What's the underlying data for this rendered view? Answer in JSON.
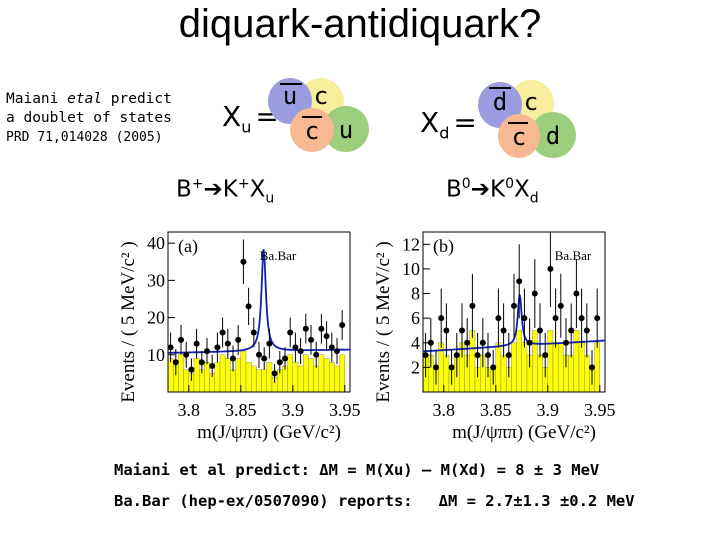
{
  "title": "diquark-antidiquark?",
  "note": {
    "line1_a": "Maiani ",
    "line1_b": "etal",
    "line1_c": " predict",
    "line2": "a doublet of states",
    "ref": "PRD 71,014028 (2005)"
  },
  "xu": {
    "label": "X",
    "sub": "u",
    "eq": "=",
    "q_anti_light": "u",
    "q_charm": "c",
    "q_anti_charm": "c",
    "q_light": "u"
  },
  "xd": {
    "label": "X",
    "sub": "d",
    "eq": "=",
    "q_anti_light": "d",
    "q_charm": "c",
    "q_anti_charm": "c",
    "q_light": "d"
  },
  "decays": {
    "left": {
      "b": "B",
      "b_sup": "+",
      "k": "K",
      "k_sup": "+",
      "x": "X",
      "x_sub": "u"
    },
    "right": {
      "b": "B",
      "b_sup": "0",
      "k": "K",
      "k_sup": "0",
      "x": "X",
      "x_sub": "d"
    }
  },
  "colors": {
    "quark_blue": "#9b9be0",
    "quark_orange": "#f7b893",
    "quark_yellow": "#f5ee9c",
    "quark_green": "#9ccf7d",
    "hist_fill": "#ffff00",
    "fit_line": "#1020b0"
  },
  "bottom": {
    "line1": "Maiani et al predict: ΔM = M(Xu) – M(Xd) = 8 ± 3 MeV",
    "line2_a": "Ba.Bar (hep-ex/0507090) reports:",
    "line2_b": "ΔM = 2.7±1.3 ±0.2 MeV"
  },
  "chart_data": [
    {
      "type": "scatter",
      "panel_label": "(a)",
      "watermark": "Ba.Bar",
      "title": "",
      "xlabel": "m(J/ψππ) (GeV/c²)",
      "ylabel": "Events / ( 5 MeV/c² )",
      "xlim": [
        3.78,
        3.955
      ],
      "ylim": [
        0,
        43
      ],
      "xticks": [
        "3.8",
        "3.85",
        "3.9",
        "3.95"
      ],
      "yticks": [
        "10",
        "20",
        "30",
        "40"
      ],
      "ytick_values": [
        10,
        20,
        30,
        40
      ],
      "xtick_values": [
        3.8,
        3.85,
        3.9,
        3.95
      ],
      "x": [
        3.7825,
        3.7875,
        3.7925,
        3.7975,
        3.8025,
        3.8075,
        3.8125,
        3.8175,
        3.8225,
        3.8275,
        3.8325,
        3.8375,
        3.8425,
        3.8475,
        3.8525,
        3.8575,
        3.8625,
        3.8675,
        3.8725,
        3.8775,
        3.8825,
        3.8875,
        3.8925,
        3.8975,
        3.9025,
        3.9075,
        3.9125,
        3.9175,
        3.9225,
        3.9275,
        3.9325,
        3.9375,
        3.9425,
        3.9475
      ],
      "y": [
        12,
        8,
        14,
        10,
        6,
        13,
        8,
        11,
        7,
        12,
        16,
        13,
        9,
        14,
        35,
        23,
        16,
        10,
        9,
        13,
        5,
        8,
        9,
        16,
        12,
        11,
        17,
        14,
        10,
        17,
        15,
        12,
        11,
        18
      ],
      "yerr": [
        4,
        3.5,
        4,
        3.5,
        3,
        4,
        3,
        3.5,
        3,
        4,
        4,
        4,
        3.5,
        4,
        6,
        5,
        4,
        3.5,
        3,
        4,
        2.5,
        3,
        3,
        4,
        4,
        3.5,
        4,
        4,
        3.5,
        4,
        4,
        4,
        3.5,
        4
      ],
      "fit": {
        "peak_x": 3.872,
        "peak_y": 38,
        "width": 0.0025,
        "baseline": 10.5
      },
      "background_hist": [
        9,
        7,
        10,
        6,
        5,
        9,
        6,
        8,
        5,
        8,
        10,
        9,
        6,
        9,
        11,
        8,
        7,
        6,
        6,
        8,
        4,
        6,
        7,
        10,
        8,
        7,
        10,
        9,
        7,
        10,
        9,
        8,
        7,
        10
      ]
    },
    {
      "type": "scatter",
      "panel_label": "(b)",
      "watermark": "Ba.Bar",
      "title": "",
      "xlabel": "m(J/ψππ) (GeV/c²)",
      "ylabel": "Events / ( 5 MeV/c² )",
      "xlim": [
        3.78,
        3.955
      ],
      "ylim": [
        0,
        13
      ],
      "xticks": [
        "3.8",
        "3.85",
        "3.9",
        "3.95"
      ],
      "yticks": [
        "2",
        "4",
        "6",
        "8",
        "10",
        "12"
      ],
      "ytick_values": [
        2,
        4,
        6,
        8,
        10,
        12
      ],
      "xtick_values": [
        3.8,
        3.85,
        3.9,
        3.95
      ],
      "x": [
        3.7825,
        3.7875,
        3.7925,
        3.7975,
        3.8025,
        3.8075,
        3.8125,
        3.8175,
        3.8225,
        3.8275,
        3.8325,
        3.8375,
        3.8425,
        3.8475,
        3.8525,
        3.8575,
        3.8625,
        3.8675,
        3.8725,
        3.8775,
        3.8825,
        3.8875,
        3.8925,
        3.8975,
        3.9025,
        3.9075,
        3.9125,
        3.9175,
        3.9225,
        3.9275,
        3.9325,
        3.9375,
        3.9425,
        3.9475
      ],
      "y": [
        3,
        4,
        2,
        6,
        5,
        2,
        3,
        5,
        4,
        7,
        3,
        4,
        3,
        2,
        6,
        5,
        3,
        7,
        9,
        6,
        4,
        8,
        5,
        3,
        10,
        6,
        7,
        4,
        5,
        8,
        6,
        5,
        2,
        6
      ],
      "yerr": [
        1.8,
        2,
        1.4,
        2.4,
        2.2,
        1.4,
        1.8,
        2.2,
        2,
        2.6,
        1.8,
        2,
        1.8,
        1.4,
        2.4,
        2.2,
        1.8,
        2.6,
        3,
        2.4,
        2,
        2.8,
        2.2,
        1.8,
        3.1,
        2.4,
        2.6,
        2,
        2.2,
        2.8,
        2.4,
        2.2,
        1.4,
        2.4
      ],
      "fit": {
        "peak_x": 3.873,
        "peak_y": 7.5,
        "width": 0.0022,
        "baseline": 3.3
      },
      "background_hist": [
        3,
        3,
        2,
        4,
        3,
        2,
        3,
        4,
        3,
        5,
        2,
        3,
        2,
        2,
        4,
        3,
        2,
        4,
        5,
        4,
        3,
        5,
        3,
        2,
        5,
        4,
        4,
        3,
        3,
        5,
        4,
        3,
        2,
        4
      ]
    }
  ]
}
